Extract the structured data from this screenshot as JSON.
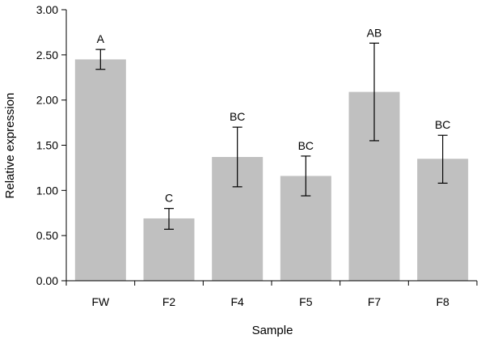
{
  "chart_data": {
    "type": "bar",
    "title": "",
    "xlabel": "Sample",
    "ylabel": "Relative expression",
    "ylim": [
      0,
      3
    ],
    "yticks": [
      "0.00",
      "0.50",
      "1.00",
      "1.50",
      "2.00",
      "2.50",
      "3.00"
    ],
    "categories": [
      "FW",
      "F2",
      "F4",
      "F5",
      "F7",
      "F8"
    ],
    "values": [
      2.45,
      0.69,
      1.37,
      1.16,
      2.09,
      1.35
    ],
    "error_low": [
      2.34,
      0.57,
      1.04,
      0.94,
      1.55,
      1.08
    ],
    "error_high": [
      2.56,
      0.8,
      1.7,
      1.38,
      2.63,
      1.61
    ],
    "labels": [
      "A",
      "C",
      "BC",
      "BC",
      "AB",
      "BC"
    ],
    "grid": false,
    "legend": "none",
    "colors": {
      "bar": "#c0c0c0",
      "axis": "#000000"
    }
  }
}
